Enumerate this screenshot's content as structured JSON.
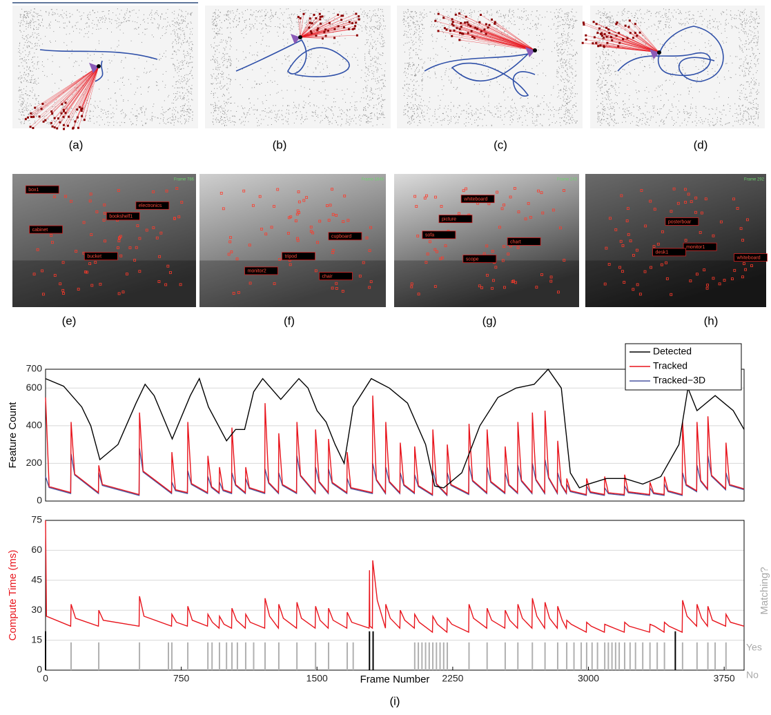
{
  "panels_top": [
    "(a)",
    "(b)",
    "(c)",
    "(d)"
  ],
  "panels_images": [
    {
      "caption": "(e)",
      "frame": "Frame 786",
      "labels": [
        "box1",
        "electronics",
        "bookshelf1",
        "cabinet",
        "bucket"
      ]
    },
    {
      "caption": "(f)",
      "frame": "Frame 1646",
      "labels": [
        "cupboard",
        "tripod",
        "monitor2",
        "chair"
      ]
    },
    {
      "caption": "(g)",
      "frame": "Frame 243",
      "labels": [
        "whiteboard",
        "picture",
        "sofa",
        "chart",
        "scope"
      ]
    },
    {
      "caption": "(h)",
      "frame": "Frame 292",
      "labels": [
        "posterboar",
        "monitor1",
        "desk1",
        "whiteboard"
      ]
    }
  ],
  "caption": "(i)",
  "chart_data": [
    {
      "type": "line",
      "ylabel": "Feature Count",
      "xlim": [
        0,
        3860
      ],
      "ylim": [
        0,
        700
      ],
      "yticks": [
        0,
        200,
        400,
        600,
        700
      ],
      "grid": true,
      "legend": "upper right",
      "series": [
        {
          "name": "Detected",
          "color": "#000000",
          "x": [
            0,
            100,
            200,
            250,
            300,
            400,
            500,
            550,
            600,
            700,
            800,
            850,
            900,
            1000,
            1050,
            1100,
            1150,
            1200,
            1300,
            1400,
            1450,
            1500,
            1550,
            1600,
            1650,
            1700,
            1800,
            1900,
            2000,
            2100,
            2150,
            2200,
            2300,
            2400,
            2500,
            2600,
            2700,
            2777,
            2850,
            2900,
            2950,
            3000,
            3100,
            3200,
            3300,
            3400,
            3500,
            3550,
            3600,
            3700,
            3800,
            3860
          ],
          "values": [
            650,
            610,
            500,
            400,
            220,
            300,
            520,
            620,
            560,
            330,
            560,
            650,
            500,
            320,
            380,
            380,
            580,
            650,
            540,
            650,
            600,
            480,
            420,
            300,
            200,
            500,
            650,
            600,
            520,
            300,
            80,
            70,
            150,
            400,
            550,
            600,
            620,
            700,
            600,
            150,
            70,
            90,
            120,
            120,
            90,
            130,
            300,
            600,
            480,
            560,
            480,
            380
          ]
        },
        {
          "name": "Tracked",
          "color": "#e8141c",
          "x": [
            0,
            20,
            139,
            141,
            161,
            292,
            294,
            314,
            517,
            519,
            539,
            696,
            698,
            718,
            784,
            786,
            806,
            895,
            897,
            917,
            959,
            961,
            981,
            1028,
            1030,
            1050,
            1104,
            1106,
            1126,
            1211,
            1213,
            1233,
            1287,
            1289,
            1309,
            1387,
            1389,
            1409,
            1490,
            1492,
            1512,
            1562,
            1564,
            1584,
            1665,
            1667,
            1687,
            1806,
            1808,
            1828,
            1878,
            1880,
            1900,
            1958,
            1960,
            1980,
            2038,
            2040,
            2060,
            2138,
            2140,
            2160,
            2218,
            2220,
            2240,
            2338,
            2340,
            2360,
            2438,
            2440,
            2460,
            2538,
            2540,
            2560,
            2608,
            2610,
            2630,
            2688,
            2690,
            2710,
            2758,
            2760,
            2780,
            2828,
            2830,
            2850,
            2878,
            2880,
            2900,
            2988,
            2990,
            3010,
            3088,
            3090,
            3110,
            3198,
            3200,
            3220,
            3338,
            3340,
            3360,
            3418,
            3420,
            3440,
            3518,
            3520,
            3540,
            3598,
            3600,
            3620,
            3658,
            3660,
            3680,
            3758,
            3760,
            3780,
            3860
          ],
          "values": [
            550,
            77,
            45,
            420,
            143,
            45,
            190,
            88,
            35,
            470,
            159,
            45,
            260,
            60,
            45,
            420,
            93,
            45,
            240,
            77,
            45,
            180,
            60,
            45,
            390,
            88,
            45,
            180,
            71,
            45,
            520,
            99,
            45,
            360,
            88,
            45,
            420,
            137,
            45,
            380,
            104,
            45,
            330,
            99,
            45,
            260,
            71,
            45,
            560,
            115,
            45,
            420,
            104,
            45,
            310,
            88,
            45,
            290,
            82,
            35,
            380,
            93,
            35,
            300,
            88,
            40,
            410,
            110,
            45,
            380,
            104,
            45,
            290,
            88,
            45,
            420,
            110,
            45,
            470,
            115,
            45,
            480,
            126,
            45,
            320,
            88,
            45,
            120,
            55,
            35,
            120,
            49,
            35,
            130,
            44,
            35,
            140,
            49,
            35,
            100,
            44,
            35,
            130,
            55,
            35,
            420,
            88,
            55,
            420,
            110,
            65,
            450,
            137,
            65,
            310,
            88,
            65
          ]
        },
        {
          "name": "Tracked−3D",
          "color": "#4a55a0",
          "x": [
            0,
            20,
            139,
            141,
            161,
            292,
            294,
            314,
            517,
            519,
            539,
            696,
            698,
            718,
            784,
            786,
            806,
            895,
            897,
            917,
            959,
            961,
            981,
            1028,
            1030,
            1050,
            1104,
            1106,
            1126,
            1211,
            1213,
            1233,
            1287,
            1289,
            1309,
            1387,
            1389,
            1409,
            1490,
            1492,
            1512,
            1562,
            1564,
            1584,
            1665,
            1667,
            1687,
            1806,
            1808,
            1828,
            1878,
            1880,
            1900,
            1958,
            1960,
            1980,
            2038,
            2040,
            2060,
            2138,
            2140,
            2160,
            2218,
            2220,
            2240,
            2338,
            2340,
            2360,
            2438,
            2440,
            2460,
            2538,
            2540,
            2560,
            2608,
            2610,
            2630,
            2688,
            2690,
            2710,
            2758,
            2760,
            2780,
            2828,
            2830,
            2850,
            2878,
            2880,
            2900,
            2988,
            2990,
            3010,
            3088,
            3090,
            3110,
            3198,
            3200,
            3220,
            3338,
            3340,
            3360,
            3418,
            3420,
            3440,
            3518,
            3520,
            3540,
            3598,
            3600,
            3620,
            3658,
            3660,
            3680,
            3758,
            3760,
            3780,
            3860
          ],
          "values": [
            130,
            72,
            40,
            250,
            138,
            40,
            150,
            83,
            30,
            280,
            154,
            40,
            100,
            55,
            40,
            160,
            88,
            40,
            130,
            72,
            40,
            100,
            55,
            40,
            150,
            83,
            40,
            120,
            66,
            40,
            170,
            94,
            40,
            150,
            83,
            40,
            240,
            132,
            40,
            180,
            99,
            40,
            170,
            94,
            40,
            120,
            66,
            40,
            200,
            110,
            40,
            180,
            99,
            40,
            150,
            83,
            40,
            140,
            77,
            30,
            160,
            88,
            30,
            150,
            83,
            35,
            190,
            105,
            40,
            180,
            99,
            40,
            150,
            83,
            40,
            190,
            105,
            40,
            200,
            110,
            40,
            220,
            121,
            40,
            150,
            83,
            40,
            90,
            50,
            30,
            80,
            44,
            30,
            70,
            39,
            30,
            80,
            44,
            30,
            70,
            39,
            30,
            90,
            50,
            30,
            150,
            83,
            50,
            190,
            105,
            60,
            240,
            132,
            60,
            150,
            83,
            60
          ]
        }
      ]
    },
    {
      "type": "line",
      "xlabel": "Frame Number",
      "ylabel": "Compute Time (ms)",
      "y2label": "Matching?",
      "xlim": [
        0,
        3860
      ],
      "ylim": [
        0,
        75
      ],
      "xticks": [
        0,
        750,
        1500,
        2250,
        3000,
        3750
      ],
      "yticks": [
        0,
        15,
        30,
        45,
        60,
        75
      ],
      "grid": true,
      "y2lim": [
        0,
        5.4
      ],
      "y2ticks": [
        {
          "value": 0,
          "label": "No"
        },
        {
          "value": 1,
          "label": "Yes"
        }
      ],
      "series": [
        {
          "color": "#e8141c",
          "x": [
            0,
            5,
            139,
            141,
            166,
            292,
            294,
            319,
            517,
            519,
            544,
            696,
            698,
            723,
            784,
            786,
            811,
            895,
            897,
            922,
            959,
            961,
            986,
            1028,
            1030,
            1055,
            1104,
            1106,
            1131,
            1211,
            1213,
            1238,
            1287,
            1289,
            1314,
            1387,
            1389,
            1414,
            1490,
            1492,
            1517,
            1562,
            1564,
            1589,
            1665,
            1667,
            1692,
            1788,
            1790,
            1792,
            1806,
            1808,
            1833,
            1878,
            1880,
            1905,
            1958,
            1960,
            1985,
            2038,
            2040,
            2065,
            2138,
            2140,
            2165,
            2218,
            2220,
            2245,
            2338,
            2340,
            2365,
            2438,
            2440,
            2465,
            2538,
            2540,
            2565,
            2608,
            2610,
            2635,
            2688,
            2690,
            2715,
            2758,
            2760,
            2785,
            2828,
            2830,
            2855,
            2878,
            2880,
            2905,
            2988,
            2990,
            3015,
            3088,
            3090,
            3115,
            3198,
            3200,
            3225,
            3338,
            3340,
            3365,
            3418,
            3420,
            3445,
            3518,
            3520,
            3545,
            3598,
            3600,
            3625,
            3658,
            3660,
            3685,
            3758,
            3760,
            3785,
            3860
          ],
          "values": [
            75,
            27,
            22,
            33,
            26,
            22,
            30,
            25,
            22,
            37,
            27,
            22,
            28,
            24,
            22,
            32,
            25,
            22,
            28,
            24,
            21,
            27,
            23,
            21,
            31,
            25,
            21,
            28,
            24,
            21,
            36,
            27,
            21,
            33,
            26,
            21,
            34,
            26,
            21,
            32,
            25,
            21,
            31,
            25,
            21,
            29,
            24,
            21,
            50,
            22,
            21,
            55,
            35,
            21,
            33,
            26,
            21,
            30,
            25,
            21,
            28,
            24,
            19,
            27,
            23,
            19,
            26,
            23,
            19,
            33,
            26,
            21,
            31,
            25,
            21,
            30,
            25,
            21,
            33,
            26,
            21,
            36,
            27,
            21,
            34,
            26,
            21,
            32,
            25,
            21,
            25,
            23,
            19,
            24,
            22,
            19,
            23,
            22,
            19,
            24,
            22,
            19,
            23,
            22,
            19,
            24,
            22,
            19,
            35,
            27,
            22,
            33,
            26,
            22,
            32,
            25,
            22,
            28,
            24,
            22
          ]
        },
        {
          "type": "bar",
          "axis": "y2",
          "color": "#b0b0b0",
          "x": [
            141,
            294,
            519,
            679,
            698,
            786,
            897,
            920,
            961,
            1000,
            1030,
            1060,
            1106,
            1150,
            1213,
            1289,
            1389,
            1492,
            1564,
            1667,
            1700,
            2040,
            2060,
            2080,
            2100,
            2120,
            2140,
            2160,
            2180,
            2200,
            2220,
            2340,
            2440,
            2540,
            2610,
            2690,
            2760,
            2830,
            2880,
            2920,
            2960,
            2990,
            3020,
            3050,
            3090,
            3110,
            3130,
            3150,
            3170,
            3200,
            3230,
            3260,
            3300,
            3340,
            3380,
            3420,
            3520,
            3600,
            3660,
            3700,
            3760
          ],
          "values": [
            1,
            1,
            1,
            1,
            1,
            1,
            1,
            1,
            1,
            1,
            1,
            1,
            1,
            1,
            1,
            1,
            1,
            1,
            1,
            1,
            1,
            1,
            1,
            1,
            1,
            1,
            1,
            1,
            1,
            1,
            1,
            1,
            1,
            1,
            1,
            1,
            1,
            1,
            1,
            1,
            1,
            1,
            1,
            1,
            1,
            1,
            1,
            1,
            1,
            1,
            1,
            1,
            1,
            1,
            1,
            1,
            1,
            1,
            1,
            1,
            1
          ]
        },
        {
          "type": "bar",
          "axis": "y2",
          "color": "#000000",
          "x": [
            0,
            1790,
            1810,
            3480
          ],
          "values": [
            1.4,
            1.4,
            1.4,
            1.4
          ]
        }
      ]
    }
  ]
}
